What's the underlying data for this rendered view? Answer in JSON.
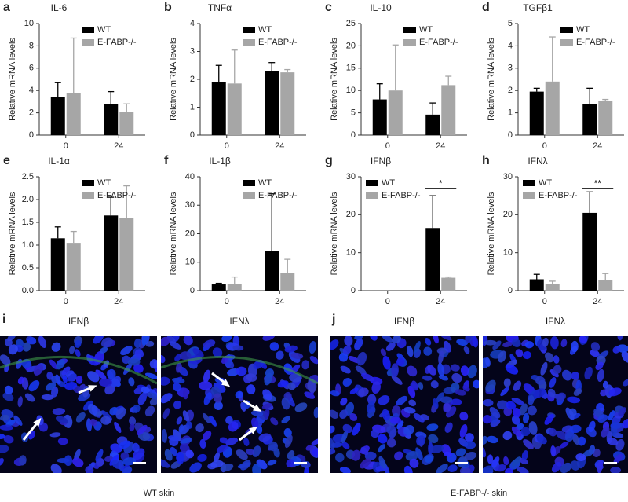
{
  "chart_data": [
    {
      "type": "bar",
      "panel": "a",
      "title": "IL-6",
      "ylabel": "Relative mRNA levels",
      "categories": [
        "0",
        "24"
      ],
      "series": [
        {
          "name": "WT",
          "color": "#000000",
          "values": [
            3.4,
            2.8
          ],
          "errors": [
            1.3,
            1.1
          ]
        },
        {
          "name": "E-FABP-/-",
          "color": "#a6a6a6",
          "values": [
            3.8,
            2.1
          ],
          "errors": [
            4.9,
            0.7
          ]
        }
      ],
      "ylim": [
        0,
        10
      ],
      "yticks": [
        0,
        2,
        4,
        6,
        8,
        10
      ]
    },
    {
      "type": "bar",
      "panel": "b",
      "title": "TNFα",
      "ylabel": "Relative mRNA levels",
      "categories": [
        "0",
        "24"
      ],
      "series": [
        {
          "name": "WT",
          "color": "#000000",
          "values": [
            1.9,
            2.3
          ],
          "errors": [
            0.6,
            0.3
          ]
        },
        {
          "name": "E-FABP-/-",
          "color": "#a6a6a6",
          "values": [
            1.85,
            2.25
          ],
          "errors": [
            1.2,
            0.1
          ]
        }
      ],
      "ylim": [
        0,
        4
      ],
      "yticks": [
        0,
        1,
        2,
        3,
        4
      ]
    },
    {
      "type": "bar",
      "panel": "c",
      "title": "IL-10",
      "ylabel": "Relative mRNA levels",
      "categories": [
        "0",
        "24"
      ],
      "series": [
        {
          "name": "WT",
          "color": "#000000",
          "values": [
            8,
            4.6
          ],
          "errors": [
            3.5,
            2.6
          ]
        },
        {
          "name": "E-FABP-/-",
          "color": "#a6a6a6",
          "values": [
            10,
            11.2
          ],
          "errors": [
            10.2,
            2.0
          ]
        }
      ],
      "ylim": [
        0,
        25
      ],
      "yticks": [
        0,
        5,
        10,
        15,
        20,
        25
      ]
    },
    {
      "type": "bar",
      "panel": "d",
      "title": "TGFβ1",
      "ylabel": "Relative mRNA levels",
      "categories": [
        "0",
        "24"
      ],
      "series": [
        {
          "name": "WT",
          "color": "#000000",
          "values": [
            1.95,
            1.4
          ],
          "errors": [
            0.15,
            0.7
          ]
        },
        {
          "name": "E-FABP-/-",
          "color": "#a6a6a6",
          "values": [
            2.4,
            1.55
          ],
          "errors": [
            2.0,
            0.05
          ]
        }
      ],
      "ylim": [
        0,
        5
      ],
      "yticks": [
        0,
        1,
        2,
        3,
        4,
        5
      ]
    },
    {
      "type": "bar",
      "panel": "e",
      "title": "IL-1α",
      "ylabel": "Relative mRNA levels",
      "categories": [
        "0",
        "24"
      ],
      "series": [
        {
          "name": "WT",
          "color": "#000000",
          "values": [
            1.15,
            1.65
          ],
          "errors": [
            0.25,
            0.4
          ]
        },
        {
          "name": "E-FABP-/-",
          "color": "#a6a6a6",
          "values": [
            1.05,
            1.6
          ],
          "errors": [
            0.25,
            0.7
          ]
        }
      ],
      "ylim": [
        0,
        2.5
      ],
      "yticks": [
        {
          "value": 0,
          "label": "0.0"
        },
        0.5,
        {
          "value": 1,
          "label": "1.0"
        },
        1.5,
        {
          "value": 2,
          "label": "2.0"
        },
        2.5
      ]
    },
    {
      "type": "bar",
      "panel": "f",
      "title": "IL-1β",
      "ylabel": "Relative mRNA levels",
      "categories": [
        "0",
        "24"
      ],
      "series": [
        {
          "name": "WT",
          "color": "#000000",
          "values": [
            2.2,
            14
          ],
          "errors": [
            0.4,
            20
          ]
        },
        {
          "name": "E-FABP-/-",
          "color": "#a6a6a6",
          "values": [
            2.3,
            6.3
          ],
          "errors": [
            2.5,
            4.7
          ]
        }
      ],
      "ylim": [
        0,
        40
      ],
      "yticks": [
        0,
        10,
        20,
        30,
        40
      ]
    },
    {
      "type": "bar",
      "panel": "g",
      "title": "IFNβ",
      "ylabel": "Relative mRNA levels",
      "categories": [
        "0",
        "24"
      ],
      "significance": "*",
      "series": [
        {
          "name": "WT",
          "color": "#000000",
          "values": [
            0,
            16.5
          ],
          "errors": [
            0,
            8.5
          ]
        },
        {
          "name": "E-FABP-/-",
          "color": "#a6a6a6",
          "values": [
            0,
            3.4
          ],
          "errors": [
            0,
            0.2
          ]
        }
      ],
      "ylim": [
        0,
        30
      ],
      "yticks": [
        0,
        10,
        20,
        30
      ]
    },
    {
      "type": "bar",
      "panel": "h",
      "title": "IFNλ",
      "ylabel": "Relative mRNA levels",
      "categories": [
        "0",
        "24"
      ],
      "significance": "**",
      "series": [
        {
          "name": "WT",
          "color": "#000000",
          "values": [
            3,
            20.5
          ],
          "errors": [
            1.3,
            5.5
          ]
        },
        {
          "name": "E-FABP-/-",
          "color": "#a6a6a6",
          "values": [
            1.7,
            2.8
          ],
          "errors": [
            0.8,
            1.7
          ]
        }
      ],
      "ylim": [
        0,
        30
      ],
      "yticks": [
        0,
        10,
        20,
        30
      ]
    }
  ],
  "images": {
    "panels": [
      {
        "letter": "i",
        "caption": "WT skin",
        "images": [
          {
            "title": "IFNβ"
          },
          {
            "title": "IFNλ"
          }
        ]
      },
      {
        "letter": "j",
        "caption": "E-FABP-/- skin",
        "images": [
          {
            "title": "IFNβ"
          },
          {
            "title": "IFNλ"
          }
        ]
      }
    ]
  }
}
